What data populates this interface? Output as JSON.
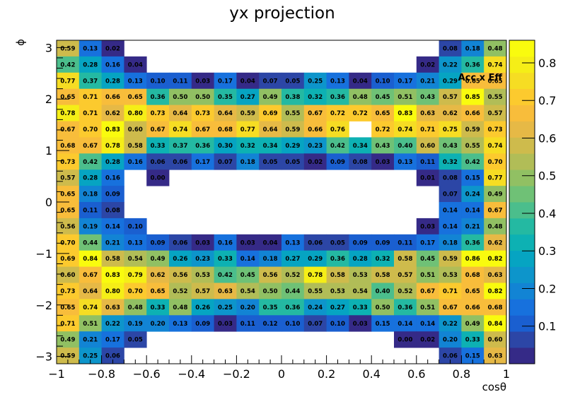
{
  "chart_data": {
    "type": "heatmap",
    "title": "yx projection",
    "xlabel": "cosθ",
    "ylabel": "ϕ",
    "zlabel": "Acc x Eff",
    "xlim": [
      -1,
      1
    ],
    "ylim": [
      -3.14159,
      3.14159
    ],
    "zlim": [
      0,
      0.86
    ],
    "nx": 20,
    "ny": 20,
    "x_ticks": [
      -1,
      -0.8,
      -0.6,
      -0.4,
      -0.2,
      0,
      0.2,
      0.4,
      0.6,
      0.8,
      1
    ],
    "x_tick_labels": [
      "−1",
      "−0.8",
      "−0.6",
      "−0.4",
      "−0.2",
      "0",
      "0.2",
      "0.4",
      "0.6",
      "0.8",
      "1"
    ],
    "y_ticks": [
      -3,
      -2,
      -1,
      0,
      1,
      2,
      3
    ],
    "y_tick_labels": [
      "−3",
      "−2",
      "−1",
      "0",
      "1",
      "2",
      "3"
    ],
    "z_ticks": [
      0.1,
      0.2,
      0.3,
      0.4,
      0.5,
      0.6,
      0.7,
      0.8
    ],
    "z_tick_labels": [
      "0.1",
      "0.2",
      "0.3",
      "0.4",
      "0.5",
      "0.6",
      "0.7",
      "0.8"
    ],
    "rows": [
      [
        0.59,
        0.13,
        0.02,
        null,
        null,
        null,
        null,
        null,
        null,
        null,
        null,
        null,
        null,
        null,
        null,
        null,
        null,
        0.08,
        0.18,
        0.48
      ],
      [
        0.42,
        0.28,
        0.16,
        0.04,
        null,
        null,
        null,
        null,
        null,
        null,
        null,
        null,
        null,
        null,
        null,
        null,
        0.02,
        0.22,
        0.36,
        0.74
      ],
      [
        0.77,
        0.37,
        0.28,
        0.13,
        0.1,
        0.11,
        0.03,
        0.17,
        0.04,
        0.07,
        0.05,
        0.25,
        0.13,
        0.04,
        0.1,
        0.17,
        0.21,
        0.29,
        0.65,
        0.65
      ],
      [
        0.65,
        0.71,
        0.66,
        0.65,
        0.36,
        0.5,
        0.5,
        0.35,
        0.27,
        0.49,
        0.38,
        0.32,
        0.36,
        0.48,
        0.45,
        0.51,
        0.43,
        0.57,
        0.85,
        0.55
      ],
      [
        0.78,
        0.71,
        0.62,
        0.8,
        0.73,
        0.64,
        0.73,
        0.64,
        0.59,
        0.69,
        0.55,
        0.67,
        0.72,
        0.72,
        0.65,
        0.83,
        0.63,
        0.62,
        0.66,
        0.57
      ],
      [
        0.67,
        0.7,
        0.83,
        0.6,
        0.67,
        0.74,
        0.67,
        0.68,
        0.77,
        0.64,
        0.59,
        0.66,
        0.76,
        null,
        0.72,
        0.74,
        0.71,
        0.75,
        0.59,
        0.73
      ],
      [
        0.68,
        0.67,
        0.78,
        0.58,
        0.33,
        0.37,
        0.36,
        0.3,
        0.32,
        0.34,
        0.29,
        0.23,
        0.42,
        0.34,
        0.43,
        0.4,
        0.6,
        0.43,
        0.55,
        0.74
      ],
      [
        0.73,
        0.42,
        0.28,
        0.16,
        0.06,
        0.06,
        0.17,
        0.07,
        0.18,
        0.05,
        0.05,
        0.02,
        0.09,
        0.08,
        0.03,
        0.13,
        0.11,
        0.32,
        0.42,
        0.7
      ],
      [
        0.57,
        0.28,
        0.16,
        null,
        0.0,
        null,
        null,
        null,
        null,
        null,
        null,
        null,
        null,
        null,
        null,
        null,
        0.01,
        0.08,
        0.15,
        0.77
      ],
      [
        0.65,
        0.18,
        0.09,
        null,
        null,
        null,
        null,
        null,
        null,
        null,
        null,
        null,
        null,
        null,
        null,
        null,
        null,
        0.07,
        0.24,
        0.49
      ],
      [
        0.65,
        0.11,
        0.08,
        null,
        null,
        null,
        null,
        null,
        null,
        null,
        null,
        null,
        null,
        null,
        null,
        null,
        null,
        0.14,
        0.14,
        0.67
      ],
      [
        0.56,
        0.19,
        0.14,
        0.1,
        null,
        null,
        null,
        null,
        null,
        null,
        null,
        null,
        null,
        null,
        null,
        null,
        0.03,
        0.14,
        0.21,
        0.48
      ],
      [
        0.7,
        0.44,
        0.21,
        0.13,
        0.09,
        0.06,
        0.03,
        0.16,
        0.03,
        0.04,
        0.13,
        0.06,
        0.05,
        0.09,
        0.09,
        0.11,
        0.17,
        0.18,
        0.36,
        0.62
      ],
      [
        0.69,
        0.84,
        0.58,
        0.54,
        0.49,
        0.26,
        0.23,
        0.33,
        0.14,
        0.18,
        0.27,
        0.29,
        0.36,
        0.28,
        0.32,
        0.58,
        0.45,
        0.59,
        0.86,
        0.82
      ],
      [
        0.6,
        0.67,
        0.83,
        0.79,
        0.62,
        0.56,
        0.53,
        0.42,
        0.45,
        0.56,
        0.52,
        0.78,
        0.58,
        0.53,
        0.58,
        0.57,
        0.51,
        0.53,
        0.68,
        0.63
      ],
      [
        0.73,
        0.64,
        0.8,
        0.7,
        0.65,
        0.52,
        0.57,
        0.63,
        0.54,
        0.5,
        0.44,
        0.55,
        0.53,
        0.54,
        0.4,
        0.52,
        0.67,
        0.71,
        0.65,
        0.82
      ],
      [
        0.65,
        0.74,
        0.63,
        0.48,
        0.33,
        0.48,
        0.26,
        0.25,
        0.2,
        0.35,
        0.36,
        0.24,
        0.27,
        0.33,
        0.5,
        0.36,
        0.51,
        0.67,
        0.66,
        0.68
      ],
      [
        0.71,
        0.51,
        0.22,
        0.19,
        0.2,
        0.13,
        0.09,
        0.03,
        0.11,
        0.12,
        0.1,
        0.07,
        0.1,
        0.03,
        0.15,
        0.14,
        0.14,
        0.22,
        0.49,
        0.84
      ],
      [
        0.49,
        0.21,
        0.17,
        0.05,
        null,
        null,
        null,
        null,
        null,
        null,
        null,
        null,
        null,
        null,
        null,
        0.0,
        0.02,
        0.2,
        0.33,
        0.6
      ],
      [
        0.59,
        0.25,
        0.06,
        null,
        null,
        null,
        null,
        null,
        null,
        null,
        null,
        null,
        null,
        null,
        null,
        null,
        null,
        0.06,
        0.15,
        0.63
      ]
    ],
    "palette": [
      "#352a87",
      "#2c46a6",
      "#1a5fd0",
      "#1771dd",
      "#1284d4",
      "#0d95cb",
      "#06a4c2",
      "#0db1b3",
      "#24b9a2",
      "#4bbe8c",
      "#6fc176",
      "#91c063",
      "#b1bd57",
      "#cebb4c",
      "#e6b946",
      "#f8bd3b",
      "#fcca2e",
      "#f6dd23",
      "#f5ee17",
      "#f9fb0e"
    ],
    "grid": false
  }
}
